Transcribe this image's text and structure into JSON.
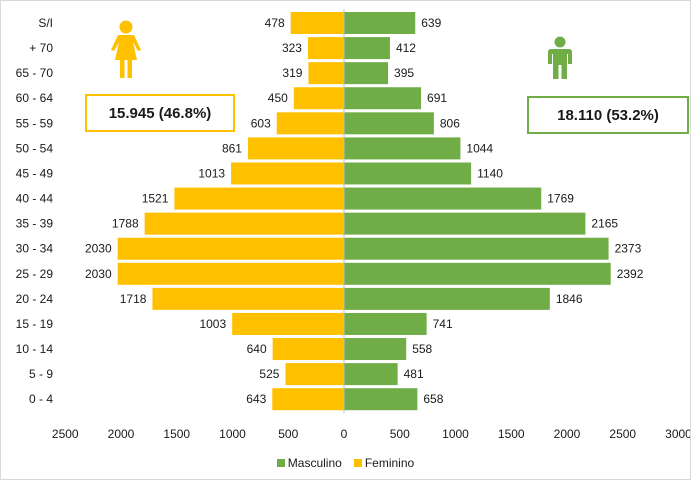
{
  "colors": {
    "female": "#FFC000",
    "male": "#70AD47"
  },
  "totals": {
    "female": "15.945 (46.8%)",
    "male": "18.110 (53.2%)"
  },
  "icons": {
    "female": "female-person-icon",
    "male": "male-person-icon"
  },
  "legend": [
    {
      "label": "Masculino",
      "color": "#70AD47"
    },
    {
      "label": "Feminino",
      "color": "#FFC000"
    }
  ],
  "chart_data": {
    "type": "bar",
    "orientation": "horizontal",
    "categories": [
      "S/I",
      "+ 70",
      "65 - 70",
      "60 - 64",
      "55 - 59",
      "50 - 54",
      "45 - 49",
      "40 - 44",
      "35 - 39",
      "30 - 34",
      "25 - 29",
      "20 - 24",
      "15 - 19",
      "10 - 14",
      "5 - 9",
      "0 - 4"
    ],
    "series": [
      {
        "name": "Masculino",
        "values": [
          639,
          412,
          395,
          691,
          806,
          1044,
          1140,
          1769,
          2165,
          2373,
          2392,
          1846,
          741,
          558,
          481,
          658
        ]
      },
      {
        "name": "Feminino",
        "values": [
          478,
          323,
          319,
          450,
          603,
          861,
          1013,
          1521,
          1788,
          2030,
          2030,
          1718,
          1003,
          640,
          525,
          643
        ]
      }
    ],
    "x_ticks": [
      "2500",
      "2000",
      "1500",
      "1000",
      "500",
      "0",
      "500",
      "1000",
      "1500",
      "2000",
      "2500",
      "3000"
    ],
    "xlim": [
      -2500,
      3000
    ],
    "grid": false,
    "legend_position": "bottom"
  }
}
